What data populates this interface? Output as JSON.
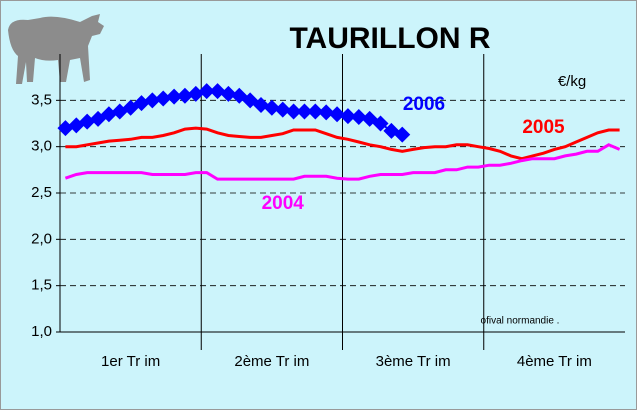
{
  "chart_data": {
    "type": "line",
    "title": "TAURILLON R",
    "y_unit_label": "€/kg",
    "source": "ofival normandie .",
    "categories": [
      null,
      null,
      null,
      null,
      null,
      null,
      "1er Tr im",
      null,
      null,
      null,
      null,
      null,
      null,
      null,
      null,
      null,
      null,
      null,
      null,
      "2ème Tr im",
      null,
      null,
      null,
      null,
      null,
      null,
      null,
      null,
      null,
      null,
      null,
      null,
      "3ème Tr im",
      null,
      null,
      null,
      null,
      null,
      null,
      null,
      null,
      null,
      null,
      null,
      null,
      "4ème Tr im",
      null,
      null,
      null,
      null,
      null,
      null
    ],
    "series": [
      {
        "name": "2006",
        "color": "#0000ff",
        "marker": "diamond",
        "values": [
          3.2,
          3.23,
          3.27,
          3.3,
          3.35,
          3.38,
          3.42,
          3.47,
          3.5,
          3.52,
          3.54,
          3.55,
          3.57,
          3.6,
          3.6,
          3.57,
          3.55,
          3.5,
          3.45,
          3.42,
          3.4,
          3.38,
          3.38,
          3.38,
          3.37,
          3.35,
          3.33,
          3.32,
          3.3,
          3.25,
          3.17,
          3.13,
          null,
          null,
          null,
          null,
          null,
          null,
          null,
          null,
          null,
          null,
          null,
          null,
          null,
          null,
          null,
          null,
          null,
          null,
          null,
          null
        ]
      },
      {
        "name": "2005",
        "color": "#ff0000",
        "marker": "none",
        "values": [
          3.0,
          3.0,
          3.02,
          3.04,
          3.06,
          3.07,
          3.08,
          3.1,
          3.1,
          3.12,
          3.15,
          3.19,
          3.2,
          3.19,
          3.15,
          3.12,
          3.11,
          3.1,
          3.1,
          3.12,
          3.14,
          3.18,
          3.18,
          3.18,
          3.14,
          3.1,
          3.08,
          3.05,
          3.02,
          3.0,
          2.97,
          2.95,
          2.97,
          2.99,
          3.0,
          3.0,
          3.02,
          3.02,
          3.0,
          2.98,
          2.95,
          2.9,
          2.87,
          2.9,
          2.93,
          2.97,
          3.0,
          3.05,
          3.1,
          3.15,
          3.18,
          3.18
        ]
      },
      {
        "name": "2004",
        "color": "#ff00ff",
        "marker": "none",
        "values": [
          2.66,
          2.7,
          2.72,
          2.72,
          2.72,
          2.72,
          2.72,
          2.72,
          2.7,
          2.7,
          2.7,
          2.7,
          2.72,
          2.72,
          2.65,
          2.65,
          2.65,
          2.65,
          2.65,
          2.65,
          2.65,
          2.65,
          2.68,
          2.68,
          2.68,
          2.66,
          2.65,
          2.65,
          2.68,
          2.7,
          2.7,
          2.7,
          2.72,
          2.72,
          2.72,
          2.75,
          2.75,
          2.78,
          2.78,
          2.8,
          2.8,
          2.82,
          2.85,
          2.87,
          2.87,
          2.87,
          2.9,
          2.92,
          2.95,
          2.95,
          3.02,
          2.97
        ]
      }
    ],
    "label_positions": {
      "2006": [
        33,
        3.45
      ],
      "2005": [
        44,
        3.2
      ],
      "2004": [
        20,
        2.38
      ]
    },
    "ylim": [
      1,
      4
    ],
    "yticks": [
      {
        "value": 1,
        "label": "1,0"
      },
      {
        "value": 1.5,
        "label": "1,5"
      },
      {
        "value": 2,
        "label": "2,0"
      },
      {
        "value": 2.5,
        "label": "2,5"
      },
      {
        "value": 3,
        "label": "3,0"
      },
      {
        "value": 3.5,
        "label": "3,5"
      }
    ],
    "grid": true
  }
}
